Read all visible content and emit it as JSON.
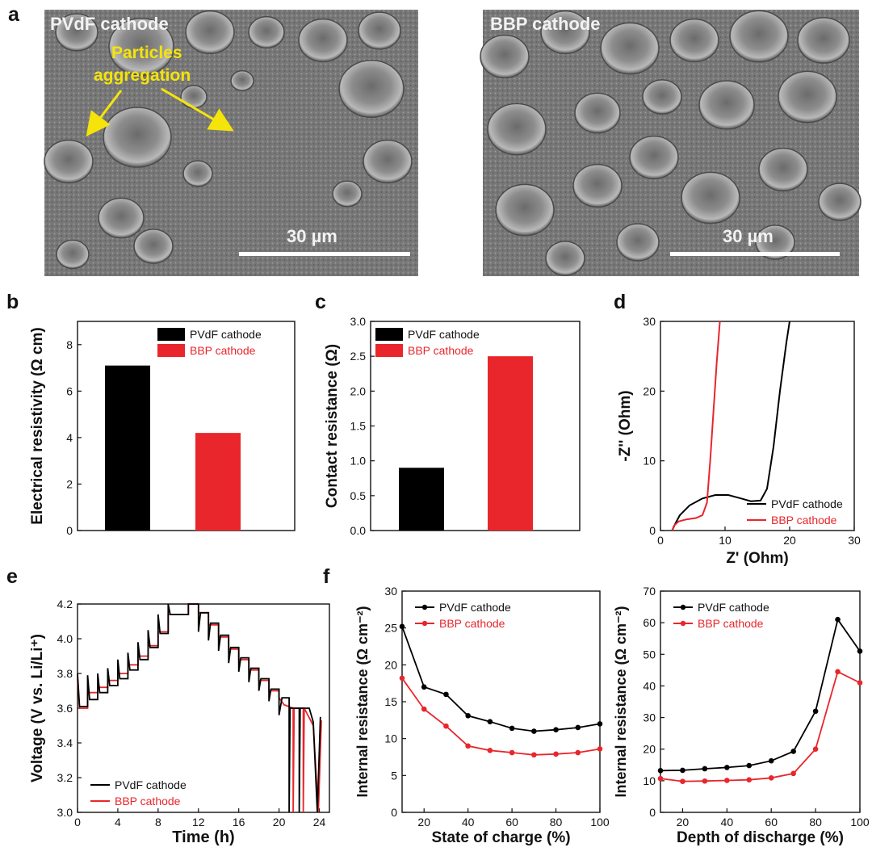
{
  "panel_labels": {
    "a": "a",
    "b": "b",
    "c": "c",
    "d": "d",
    "e": "e",
    "f": "f"
  },
  "sem": [
    {
      "label": "PVdF cathode",
      "annotation_line1": "Particles",
      "annotation_line2": "aggregation",
      "scale": "30 µm"
    },
    {
      "label": "BBP cathode",
      "scale": "30 µm"
    }
  ],
  "colors": {
    "pvdf": "#000000",
    "bbp": "#e8262b",
    "annotation": "#f5e40a"
  },
  "chart_data": [
    {
      "id": "b",
      "type": "bar",
      "categories": [
        "PVdF cathode",
        "BBP cathode"
      ],
      "values": [
        7.1,
        4.2
      ],
      "xlabel": "",
      "ylabel": "Electrical resistivity (Ω cm)",
      "ylim": [
        0,
        9
      ],
      "yticks": [
        "0",
        "2",
        "4",
        "6",
        "8"
      ],
      "legend": [
        "PVdF cathode",
        "BBP cathode"
      ],
      "legend_position": "top-right"
    },
    {
      "id": "c",
      "type": "bar",
      "categories": [
        "PVdF cathode",
        "BBP cathode"
      ],
      "values": [
        0.9,
        2.5
      ],
      "xlabel": "",
      "ylabel": "Contact resistance (Ω)",
      "ylim": [
        0,
        3.0
      ],
      "yticks": [
        "0.0",
        "0.5",
        "1.0",
        "1.5",
        "2.0",
        "2.5",
        "3.0"
      ],
      "legend": [
        "PVdF cathode",
        "BBP cathode"
      ],
      "legend_position": "top-left"
    },
    {
      "id": "d",
      "type": "line",
      "xlabel": "Z' (Ohm)",
      "ylabel": "-Z'' (Ohm)",
      "xlim": [
        0,
        30
      ],
      "ylim": [
        0,
        30
      ],
      "xticks": [
        "0",
        "10",
        "20",
        "30"
      ],
      "yticks": [
        "0",
        "10",
        "20",
        "30"
      ],
      "legend_position": "bottom-right",
      "series": [
        {
          "name": "PVdF cathode",
          "points": [
            [
              1.8,
              0
            ],
            [
              2.3,
              1
            ],
            [
              3,
              2.2
            ],
            [
              4.5,
              3.6
            ],
            [
              6.5,
              4.6
            ],
            [
              8.5,
              5.1
            ],
            [
              10.5,
              5.1
            ],
            [
              12.5,
              4.6
            ],
            [
              14,
              4.2
            ],
            [
              15.5,
              4.3
            ],
            [
              16.5,
              6
            ],
            [
              17.5,
              12
            ],
            [
              18.5,
              20
            ],
            [
              19.5,
              27
            ],
            [
              20,
              30
            ]
          ]
        },
        {
          "name": "BBP cathode",
          "points": [
            [
              1.8,
              0
            ],
            [
              2.1,
              0.7
            ],
            [
              2.8,
              1.3
            ],
            [
              4,
              1.6
            ],
            [
              5.5,
              1.8
            ],
            [
              6.5,
              2.2
            ],
            [
              7.2,
              4
            ],
            [
              7.7,
              10
            ],
            [
              8.2,
              17
            ],
            [
              8.7,
              24
            ],
            [
              9.2,
              30
            ]
          ]
        }
      ]
    },
    {
      "id": "e",
      "type": "line",
      "xlabel": "Time (h)",
      "ylabel": "Voltage (V vs. Li/Li⁺)",
      "xlim": [
        0,
        25
      ],
      "ylim": [
        3.0,
        4.2
      ],
      "xticks": [
        "0",
        "4",
        "8",
        "12",
        "16",
        "20",
        "24"
      ],
      "yticks": [
        "3.0",
        "3.2",
        "3.4",
        "3.6",
        "3.8",
        "4.0",
        "4.2"
      ],
      "legend_position": "bottom-left",
      "series": [
        {
          "name": "PVdF cathode",
          "points": [
            [
              0,
              3.8
            ],
            [
              0.2,
              3.61
            ],
            [
              1,
              3.61
            ],
            [
              1,
              3.79
            ],
            [
              1.2,
              3.65
            ],
            [
              2,
              3.65
            ],
            [
              2,
              3.8
            ],
            [
              2.2,
              3.69
            ],
            [
              3,
              3.69
            ],
            [
              3,
              3.83
            ],
            [
              3.2,
              3.73
            ],
            [
              4,
              3.73
            ],
            [
              4,
              3.88
            ],
            [
              4.2,
              3.77
            ],
            [
              5,
              3.77
            ],
            [
              5,
              3.92
            ],
            [
              5.2,
              3.82
            ],
            [
              6,
              3.82
            ],
            [
              6,
              3.98
            ],
            [
              6.2,
              3.88
            ],
            [
              7,
              3.88
            ],
            [
              7,
              4.05
            ],
            [
              7.2,
              3.95
            ],
            [
              8,
              3.95
            ],
            [
              8,
              4.14
            ],
            [
              8.2,
              4.03
            ],
            [
              9,
              4.03
            ],
            [
              9,
              4.2
            ],
            [
              9.2,
              4.14
            ],
            [
              11,
              4.14
            ],
            [
              11,
              4.2
            ],
            [
              12,
              4.2
            ],
            [
              12,
              4.04
            ],
            [
              12.2,
              4.15
            ],
            [
              13,
              4.15
            ],
            [
              13,
              3.99
            ],
            [
              13.2,
              4.09
            ],
            [
              14,
              4.09
            ],
            [
              14,
              3.93
            ],
            [
              14.2,
              4.02
            ],
            [
              15,
              4.02
            ],
            [
              15,
              3.86
            ],
            [
              15.2,
              3.95
            ],
            [
              16,
              3.95
            ],
            [
              16,
              3.81
            ],
            [
              16.2,
              3.89
            ],
            [
              17,
              3.89
            ],
            [
              17,
              3.75
            ],
            [
              17.2,
              3.83
            ],
            [
              18,
              3.83
            ],
            [
              18,
              3.7
            ],
            [
              18.2,
              3.77
            ],
            [
              19,
              3.77
            ],
            [
              19,
              3.64
            ],
            [
              19.2,
              3.71
            ],
            [
              20,
              3.71
            ],
            [
              20,
              3.56
            ],
            [
              20.3,
              3.66
            ],
            [
              21,
              3.66
            ],
            [
              21,
              3.0
            ],
            [
              21.1,
              3.6
            ],
            [
              22,
              3.6
            ],
            [
              22,
              3.0
            ],
            [
              22.1,
              3.6
            ],
            [
              23,
              3.6
            ],
            [
              23.4,
              3.52
            ],
            [
              23.8,
              3.0
            ],
            [
              24.1,
              3.55
            ]
          ]
        },
        {
          "name": "BBP cathode",
          "points": [
            [
              0,
              3.77
            ],
            [
              0.2,
              3.6
            ],
            [
              1,
              3.6
            ],
            [
              1,
              3.69
            ],
            [
              2,
              3.69
            ],
            [
              2,
              3.72
            ],
            [
              3,
              3.72
            ],
            [
              3,
              3.76
            ],
            [
              4,
              3.76
            ],
            [
              4,
              3.8
            ],
            [
              5,
              3.8
            ],
            [
              5,
              3.85
            ],
            [
              6,
              3.85
            ],
            [
              6,
              3.9
            ],
            [
              7,
              3.9
            ],
            [
              7,
              3.96
            ],
            [
              8,
              3.96
            ],
            [
              8,
              4.04
            ],
            [
              9,
              4.04
            ],
            [
              9,
              4.14
            ],
            [
              11,
              4.14
            ],
            [
              11,
              4.2
            ],
            [
              12,
              4.2
            ],
            [
              12,
              4.15
            ],
            [
              13,
              4.15
            ],
            [
              13,
              4.08
            ],
            [
              14,
              4.08
            ],
            [
              14,
              4.01
            ],
            [
              15,
              4.01
            ],
            [
              15,
              3.94
            ],
            [
              16,
              3.94
            ],
            [
              16,
              3.88
            ],
            [
              17,
              3.88
            ],
            [
              17,
              3.82
            ],
            [
              18,
              3.82
            ],
            [
              18,
              3.76
            ],
            [
              19,
              3.76
            ],
            [
              19,
              3.7
            ],
            [
              20,
              3.7
            ],
            [
              20,
              3.66
            ],
            [
              20.5,
              3.62
            ],
            [
              21.4,
              3.6
            ],
            [
              21.4,
              3.0
            ],
            [
              21.5,
              3.6
            ],
            [
              22.4,
              3.6
            ],
            [
              22.4,
              3.0
            ],
            [
              22.5,
              3.6
            ],
            [
              23.4,
              3.5
            ],
            [
              23.9,
              3.0
            ],
            [
              24.2,
              3.53
            ]
          ]
        }
      ]
    },
    {
      "id": "f-left",
      "type": "line",
      "xlabel": "State of charge (%)",
      "ylabel": "Internal resistance (Ω cm⁻²)",
      "xlim": [
        10,
        100
      ],
      "ylim": [
        0,
        30
      ],
      "xticks": [
        "20",
        "40",
        "60",
        "80",
        "100"
      ],
      "yticks": [
        "0",
        "5",
        "10",
        "15",
        "20",
        "25",
        "30"
      ],
      "legend_position": "top-left",
      "series": [
        {
          "name": "PVdF cathode",
          "x": [
            10,
            20,
            30,
            40,
            50,
            60,
            70,
            80,
            90,
            100
          ],
          "y": [
            25.2,
            17.0,
            16.0,
            13.1,
            12.3,
            11.4,
            11.0,
            11.2,
            11.5,
            12.0
          ]
        },
        {
          "name": "BBP cathode",
          "x": [
            10,
            20,
            30,
            40,
            50,
            60,
            70,
            80,
            90,
            100
          ],
          "y": [
            18.2,
            14.0,
            11.7,
            9.0,
            8.4,
            8.1,
            7.8,
            7.9,
            8.1,
            8.6
          ]
        }
      ]
    },
    {
      "id": "f-right",
      "type": "line",
      "xlabel": "Depth of discharge (%)",
      "ylabel": "Internal resistance (Ω cm⁻²)",
      "xlim": [
        10,
        100
      ],
      "ylim": [
        0,
        70
      ],
      "xticks": [
        "20",
        "40",
        "60",
        "80",
        "100"
      ],
      "yticks": [
        "0",
        "10",
        "20",
        "30",
        "40",
        "50",
        "60",
        "70"
      ],
      "legend_position": "top-left",
      "series": [
        {
          "name": "PVdF cathode",
          "x": [
            10,
            20,
            30,
            40,
            50,
            60,
            70,
            80,
            90,
            100
          ],
          "y": [
            13.2,
            13.3,
            13.8,
            14.2,
            14.8,
            16.3,
            19.3,
            32.0,
            61.0,
            51.0
          ]
        },
        {
          "name": "BBP cathode",
          "x": [
            10,
            20,
            30,
            40,
            50,
            60,
            70,
            80,
            90,
            100
          ],
          "y": [
            10.7,
            9.8,
            9.9,
            10.1,
            10.3,
            10.9,
            12.3,
            20.0,
            44.5,
            41.0
          ]
        }
      ]
    }
  ]
}
